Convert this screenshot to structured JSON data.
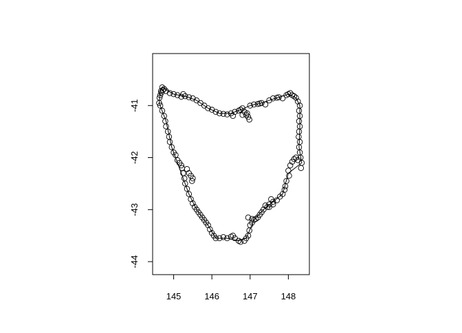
{
  "chart_data": {
    "type": "scatter",
    "title": "",
    "xlabel": "",
    "ylabel": "",
    "xlim": [
      144.45,
      148.55
    ],
    "ylim": [
      -44.25,
      -40.0
    ],
    "x_ticks": [
      145,
      146,
      147,
      148
    ],
    "y_ticks": [
      -41,
      -42,
      -43,
      -44
    ],
    "x_tick_labels": [
      "145",
      "146",
      "147",
      "148"
    ],
    "y_tick_labels": [
      "-41",
      "-42",
      "-43",
      "-44"
    ],
    "grid": false,
    "legend": "none",
    "outline": {
      "closed": true,
      "points": [
        [
          144.7,
          -40.65
        ],
        [
          145.0,
          -40.78
        ],
        [
          145.3,
          -40.82
        ],
        [
          145.6,
          -40.9
        ],
        [
          145.9,
          -41.05
        ],
        [
          146.2,
          -41.15
        ],
        [
          146.5,
          -41.15
        ],
        [
          146.75,
          -41.08
        ],
        [
          147.0,
          -41.0
        ],
        [
          147.25,
          -40.96
        ],
        [
          147.5,
          -40.9
        ],
        [
          147.75,
          -40.84
        ],
        [
          148.0,
          -40.78
        ],
        [
          148.2,
          -40.85
        ],
        [
          148.3,
          -41.0
        ],
        [
          148.3,
          -41.4
        ],
        [
          148.28,
          -41.8
        ],
        [
          148.35,
          -42.1
        ],
        [
          148.0,
          -42.3
        ],
        [
          147.85,
          -42.7
        ],
        [
          147.6,
          -42.85
        ],
        [
          147.35,
          -43.0
        ],
        [
          147.1,
          -43.2
        ],
        [
          146.9,
          -43.55
        ],
        [
          146.7,
          -43.6
        ],
        [
          146.4,
          -43.55
        ],
        [
          146.1,
          -43.55
        ],
        [
          145.9,
          -43.3
        ],
        [
          145.6,
          -43.0
        ],
        [
          145.4,
          -42.7
        ],
        [
          145.25,
          -42.4
        ],
        [
          145.1,
          -42.1
        ],
        [
          144.95,
          -41.8
        ],
        [
          144.8,
          -41.3
        ],
        [
          144.62,
          -40.95
        ],
        [
          144.65,
          -40.72
        ]
      ]
    },
    "series": [
      {
        "marker": "open-circle",
        "points": [
          [
            144.7,
            -40.65
          ],
          [
            144.72,
            -40.7
          ],
          [
            144.68,
            -40.75
          ],
          [
            144.75,
            -40.68
          ],
          [
            144.8,
            -40.72
          ],
          [
            144.9,
            -40.76
          ],
          [
            145.0,
            -40.78
          ],
          [
            145.1,
            -40.8
          ],
          [
            145.2,
            -40.83
          ],
          [
            145.25,
            -40.78
          ],
          [
            145.3,
            -40.82
          ],
          [
            145.4,
            -40.84
          ],
          [
            145.5,
            -40.86
          ],
          [
            145.6,
            -40.9
          ],
          [
            145.7,
            -40.95
          ],
          [
            145.8,
            -41.0
          ],
          [
            145.9,
            -41.05
          ],
          [
            146.0,
            -41.08
          ],
          [
            146.1,
            -41.12
          ],
          [
            146.2,
            -41.15
          ],
          [
            146.3,
            -41.16
          ],
          [
            146.4,
            -41.17
          ],
          [
            146.5,
            -41.15
          ],
          [
            146.55,
            -41.2
          ],
          [
            146.6,
            -41.12
          ],
          [
            146.7,
            -41.1
          ],
          [
            146.75,
            -41.08
          ],
          [
            146.8,
            -41.05
          ],
          [
            146.85,
            -41.12
          ],
          [
            146.9,
            -41.18
          ],
          [
            146.95,
            -41.22
          ],
          [
            146.98,
            -41.27
          ],
          [
            146.92,
            -41.15
          ],
          [
            146.8,
            -41.18
          ],
          [
            147.0,
            -41.0
          ],
          [
            147.1,
            -40.98
          ],
          [
            147.2,
            -40.97
          ],
          [
            147.25,
            -40.96
          ],
          [
            147.3,
            -40.95
          ],
          [
            147.4,
            -40.98
          ],
          [
            147.5,
            -40.9
          ],
          [
            147.6,
            -40.86
          ],
          [
            147.7,
            -40.85
          ],
          [
            147.75,
            -40.84
          ],
          [
            147.85,
            -40.86
          ],
          [
            147.95,
            -40.8
          ],
          [
            148.0,
            -40.78
          ],
          [
            148.05,
            -40.76
          ],
          [
            148.1,
            -40.8
          ],
          [
            148.15,
            -40.82
          ],
          [
            148.2,
            -40.85
          ],
          [
            148.25,
            -40.92
          ],
          [
            148.3,
            -41.0
          ],
          [
            148.28,
            -41.1
          ],
          [
            148.3,
            -41.2
          ],
          [
            148.28,
            -41.3
          ],
          [
            148.3,
            -41.4
          ],
          [
            148.28,
            -41.5
          ],
          [
            148.27,
            -41.6
          ],
          [
            148.3,
            -41.7
          ],
          [
            148.28,
            -41.8
          ],
          [
            148.3,
            -41.9
          ],
          [
            148.32,
            -42.0
          ],
          [
            148.35,
            -42.1
          ],
          [
            148.33,
            -42.2
          ],
          [
            148.25,
            -42.05
          ],
          [
            148.2,
            -42.0
          ],
          [
            148.15,
            -42.03
          ],
          [
            148.1,
            -42.08
          ],
          [
            148.05,
            -42.15
          ],
          [
            148.0,
            -42.25
          ],
          [
            148.02,
            -42.35
          ],
          [
            147.95,
            -42.45
          ],
          [
            147.92,
            -42.55
          ],
          [
            147.9,
            -42.62
          ],
          [
            147.85,
            -42.7
          ],
          [
            147.78,
            -42.75
          ],
          [
            147.7,
            -42.82
          ],
          [
            147.6,
            -42.85
          ],
          [
            147.55,
            -42.8
          ],
          [
            147.5,
            -42.9
          ],
          [
            147.45,
            -42.95
          ],
          [
            147.4,
            -42.92
          ],
          [
            147.35,
            -43.0
          ],
          [
            147.3,
            -43.05
          ],
          [
            147.25,
            -43.1
          ],
          [
            147.2,
            -43.15
          ],
          [
            147.15,
            -43.18
          ],
          [
            147.1,
            -43.2
          ],
          [
            147.05,
            -43.25
          ],
          [
            147.0,
            -43.3
          ],
          [
            146.98,
            -43.4
          ],
          [
            146.95,
            -43.5
          ],
          [
            146.9,
            -43.55
          ],
          [
            146.85,
            -43.6
          ],
          [
            146.75,
            -43.62
          ],
          [
            146.7,
            -43.6
          ],
          [
            146.6,
            -43.55
          ],
          [
            146.5,
            -43.52
          ],
          [
            146.4,
            -43.55
          ],
          [
            146.3,
            -43.53
          ],
          [
            146.2,
            -43.55
          ],
          [
            146.1,
            -43.55
          ],
          [
            146.05,
            -43.5
          ],
          [
            146.0,
            -43.45
          ],
          [
            145.95,
            -43.38
          ],
          [
            145.9,
            -43.3
          ],
          [
            145.85,
            -43.25
          ],
          [
            145.8,
            -43.2
          ],
          [
            145.7,
            -43.1
          ],
          [
            145.6,
            -43.0
          ],
          [
            145.55,
            -42.95
          ],
          [
            145.5,
            -42.88
          ],
          [
            145.45,
            -42.8
          ],
          [
            145.4,
            -42.7
          ],
          [
            145.35,
            -42.6
          ],
          [
            145.3,
            -42.5
          ],
          [
            145.28,
            -42.4
          ],
          [
            145.25,
            -42.3
          ],
          [
            145.22,
            -42.2
          ],
          [
            145.35,
            -42.22
          ],
          [
            145.4,
            -42.3
          ],
          [
            145.45,
            -42.35
          ],
          [
            145.5,
            -42.4
          ],
          [
            145.48,
            -42.45
          ],
          [
            145.2,
            -42.15
          ],
          [
            145.15,
            -42.1
          ],
          [
            145.1,
            -42.05
          ],
          [
            145.05,
            -41.95
          ],
          [
            145.0,
            -41.9
          ],
          [
            144.95,
            -41.8
          ],
          [
            144.9,
            -41.7
          ],
          [
            144.88,
            -41.6
          ],
          [
            144.85,
            -41.5
          ],
          [
            144.8,
            -41.4
          ],
          [
            144.78,
            -41.3
          ],
          [
            144.75,
            -41.2
          ],
          [
            144.7,
            -41.1
          ],
          [
            144.65,
            -41.0
          ],
          [
            144.62,
            -40.95
          ],
          [
            144.63,
            -40.85
          ],
          [
            144.65,
            -40.8
          ],
          [
            144.67,
            -40.72
          ],
          [
            146.95,
            -43.15
          ],
          [
            147.05,
            -43.18
          ],
          [
            147.5,
            -42.95
          ],
          [
            147.6,
            -42.9
          ],
          [
            146.55,
            -43.5
          ],
          [
            145.75,
            -43.15
          ],
          [
            145.65,
            -43.05
          ]
        ]
      }
    ]
  }
}
